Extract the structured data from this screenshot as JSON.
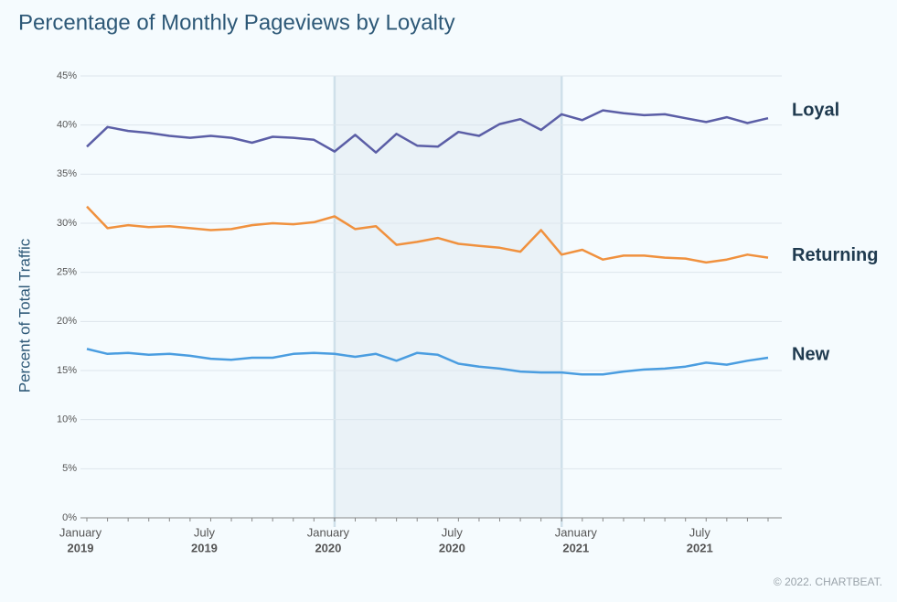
{
  "chart_data": {
    "type": "line",
    "title": "Percentage of Monthly Pageviews by Loyalty",
    "y_label": "Percent of Total Traffic",
    "footer": "© 2022. CHARTBEAT.",
    "categories": [
      "January",
      null,
      null,
      null,
      null,
      null,
      "July",
      null,
      null,
      null,
      null,
      null,
      "January",
      null,
      null,
      null,
      null,
      null,
      "July",
      null,
      null,
      null,
      null,
      null,
      "January",
      null,
      null,
      null,
      null,
      null,
      "July",
      null,
      null,
      null
    ],
    "category_years": [
      "2019",
      null,
      null,
      null,
      null,
      null,
      "2019",
      null,
      null,
      null,
      null,
      null,
      "2020",
      null,
      null,
      null,
      null,
      null,
      "2020",
      null,
      null,
      null,
      null,
      null,
      "2021",
      null,
      null,
      null,
      null,
      null,
      "2021",
      null,
      null,
      null
    ],
    "highlight": [
      12,
      23
    ],
    "series": [
      {
        "name": "Loyal",
        "color": "#5b5ea6",
        "values": [
          37.8,
          39.8,
          39.4,
          39.2,
          38.9,
          38.7,
          38.9,
          38.7,
          38.2,
          38.8,
          38.7,
          38.5,
          37.3,
          39.0,
          37.2,
          39.1,
          37.9,
          37.8,
          39.3,
          38.9,
          40.1,
          40.6,
          39.5,
          41.1,
          40.5,
          41.5,
          41.2,
          41.0,
          41.1,
          40.7,
          40.3,
          40.8,
          40.2,
          40.7
        ]
      },
      {
        "name": "Returning",
        "color": "#f0913e",
        "values": [
          31.7,
          29.5,
          29.8,
          29.6,
          29.7,
          29.5,
          29.3,
          29.4,
          29.8,
          30.0,
          29.9,
          30.1,
          30.7,
          29.4,
          29.7,
          27.8,
          28.1,
          28.5,
          27.9,
          27.7,
          27.5,
          27.1,
          29.3,
          26.8,
          27.3,
          26.3,
          26.7,
          26.7,
          26.5,
          26.4,
          26.0,
          26.3,
          26.8,
          26.5
        ]
      },
      {
        "name": "New",
        "color": "#4a9de0",
        "values": [
          17.2,
          16.7,
          16.8,
          16.6,
          16.7,
          16.5,
          16.2,
          16.1,
          16.3,
          16.3,
          16.7,
          16.8,
          16.7,
          16.4,
          16.7,
          16.0,
          16.8,
          16.6,
          15.7,
          15.4,
          15.2,
          14.9,
          14.8,
          14.8,
          14.6,
          14.6,
          14.9,
          15.1,
          15.2,
          15.4,
          15.8,
          15.6,
          16.0,
          16.3
        ]
      }
    ],
    "ylim": [
      0,
      45
    ],
    "yticks": [
      {
        "value": 0,
        "label": "0%"
      },
      {
        "value": 5,
        "label": "5%"
      },
      {
        "value": 10,
        "label": "10%"
      },
      {
        "value": 15,
        "label": "15%"
      },
      {
        "value": 20,
        "label": "20%"
      },
      {
        "value": 25,
        "label": "25%"
      },
      {
        "value": 30,
        "label": "30%"
      },
      {
        "value": 35,
        "label": "35%"
      },
      {
        "value": 40,
        "label": "40%"
      },
      {
        "value": 45,
        "label": "45%"
      }
    ],
    "grid": true
  }
}
